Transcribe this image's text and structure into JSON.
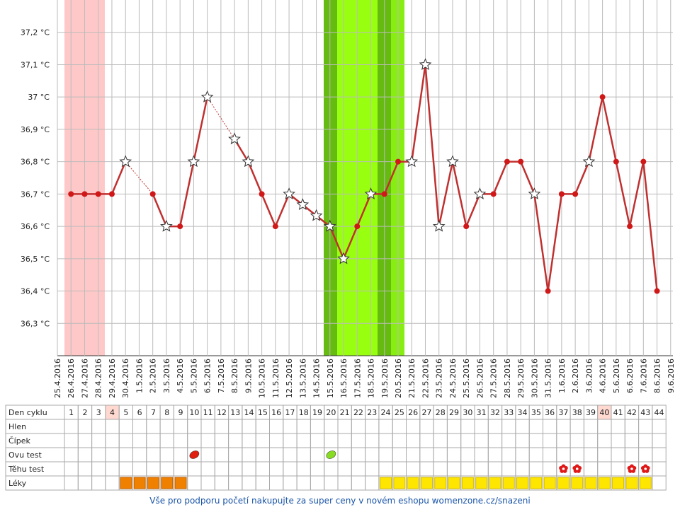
{
  "chart_data": {
    "type": "line",
    "x": [
      "25.4.2016",
      "26.4.2016",
      "27.4.2016",
      "28.4.2016",
      "29.4.2016",
      "30.4.2016",
      "1.5.2016",
      "2.5.2016",
      "3.5.2016",
      "4.5.2016",
      "5.5.2016",
      "6.5.2016",
      "7.5.2016",
      "8.5.2016",
      "9.5.2016",
      "10.5.2016",
      "11.5.2016",
      "12.5.2016",
      "13.5.2016",
      "14.5.2016",
      "15.5.2016",
      "16.5.2016",
      "17.5.2016",
      "18.5.2016",
      "19.5.2016",
      "20.5.2016",
      "21.5.2016",
      "22.5.2016",
      "23.5.2016",
      "24.5.2016",
      "25.5.2016",
      "26.5.2016",
      "27.5.2016",
      "28.5.2016",
      "29.5.2016",
      "30.5.2016",
      "31.5.2016",
      "1.6.2016",
      "2.6.2016",
      "3.6.2016",
      "4.6.2016",
      "5.6.2016",
      "6.6.2016",
      "7.6.2016",
      "8.6.2016",
      "9.6.2016"
    ],
    "series": [
      {
        "color": "#c03030",
        "values": [
          null,
          36.7,
          36.7,
          36.7,
          36.7,
          36.8,
          null,
          36.7,
          36.6,
          36.6,
          36.8,
          37.0,
          null,
          36.87,
          36.8,
          36.7,
          36.6,
          36.7,
          36.667,
          36.633,
          36.6,
          36.5,
          36.6,
          36.7,
          36.7,
          36.8,
          36.8,
          37.1,
          36.6,
          36.8,
          36.6,
          36.7,
          36.7,
          36.8,
          36.8,
          36.7,
          36.4,
          36.7,
          36.7,
          36.8,
          37.0,
          36.8,
          36.6,
          36.8,
          36.4,
          null
        ],
        "markers": [
          null,
          "dot",
          "dot",
          "dot",
          "dot",
          "star",
          null,
          "dot",
          "star",
          "dot",
          "star",
          "star",
          null,
          "star",
          "star",
          "dot",
          "dot",
          "star",
          "star",
          "star",
          "star",
          "star",
          "dot",
          "star",
          "dot",
          "dot",
          "star",
          "star",
          "star",
          "star",
          "dot",
          "star",
          "dot",
          "dot",
          "dot",
          "star",
          "dot",
          "dot",
          "dot",
          "star",
          "dot",
          "dot",
          "dot",
          "dot",
          "dot",
          null
        ]
      }
    ],
    "ylim": [
      36.2,
      37.3
    ],
    "yticks": [
      {
        "value": 36.3,
        "label": "36,3 °C"
      },
      {
        "value": 36.4,
        "label": "36,4 °C"
      },
      {
        "value": 36.5,
        "label": "36,5 °C"
      },
      {
        "value": 36.6,
        "label": "36,6 °C"
      },
      {
        "value": 36.7,
        "label": "36,7 °C"
      },
      {
        "value": 36.8,
        "label": "36,8 °C"
      },
      {
        "value": 36.9,
        "label": "36,9 °C"
      },
      {
        "value": 37.0,
        "label": "37 °C"
      },
      {
        "value": 37.1,
        "label": "37,1 °C"
      },
      {
        "value": 37.2,
        "label": "37,2 °C"
      }
    ],
    "grid": true
  },
  "table": {
    "row_labels": [
      "Den cyklu",
      "Hlen",
      "Čípek",
      "Ovu test",
      "Těhu test",
      "Léky"
    ],
    "days": [
      1,
      2,
      3,
      4,
      5,
      6,
      7,
      8,
      9,
      10,
      11,
      12,
      13,
      14,
      15,
      16,
      17,
      18,
      19,
      20,
      21,
      22,
      23,
      24,
      25,
      26,
      27,
      28,
      29,
      30,
      31,
      32,
      33,
      34,
      35,
      36,
      37,
      38,
      39,
      40,
      41,
      42,
      43,
      44
    ]
  },
  "footer": "Vše pro podporu početí nakupujte za super ceny v novém eshopu womenzone.cz/snazeni"
}
